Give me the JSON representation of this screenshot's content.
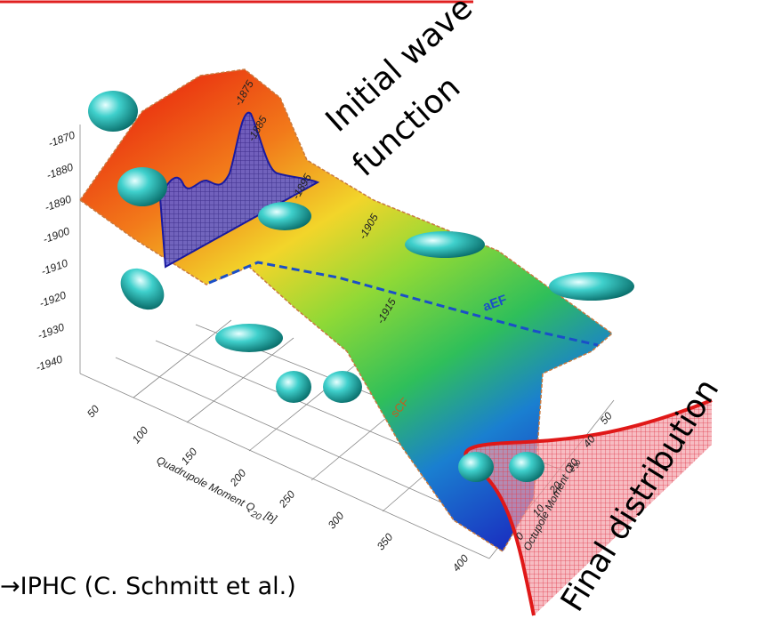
{
  "annotations": {
    "initial_line1": "Initial wave",
    "initial_line2": "function",
    "final": "Final distribution",
    "credit": "→IPHC (C. Schmitt et al.)",
    "aef": "aEF",
    "scf": "sCF"
  },
  "energy_axis": {
    "ticks": [
      "-1870",
      "-1880",
      "-1890",
      "-1900",
      "-1910",
      "-1920",
      "-1930",
      "-1940"
    ]
  },
  "quadrupole_axis": {
    "title": "Quadrupole Moment Q",
    "subscript": "20",
    "unit": "[b]",
    "ticks": [
      "50",
      "100",
      "150",
      "200",
      "250",
      "300",
      "350",
      "400"
    ]
  },
  "octupole_axis": {
    "title": "Octupole Moment Q",
    "subscript": "30",
    "ticks": [
      "50",
      "40",
      "30",
      "20",
      "10",
      "0"
    ]
  },
  "contours": [
    "-1875",
    "-1885",
    "-1895",
    "-1905",
    "-1915"
  ]
}
